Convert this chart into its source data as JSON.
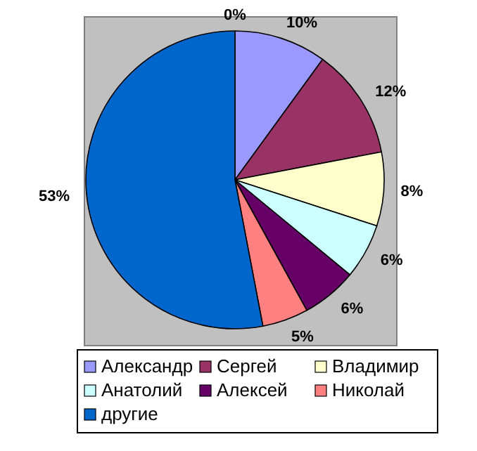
{
  "chart_data": {
    "type": "pie",
    "categories": [
      null,
      "Александр",
      "Сергей",
      "Владимир",
      "Анатолий",
      "Алексей",
      "Николай",
      "другие"
    ],
    "values": [
      0,
      10,
      12,
      8,
      6,
      6,
      5,
      53
    ],
    "colors": [
      "#000000",
      "#9999ff",
      "#993366",
      "#ffffcc",
      "#ccffff",
      "#660066",
      "#ff8080",
      "#0066cc"
    ],
    "value_labels": [
      "0%",
      "10%",
      "12%",
      "8%",
      "6%",
      "6%",
      "5%",
      "53%"
    ],
    "legend": "bottom"
  }
}
